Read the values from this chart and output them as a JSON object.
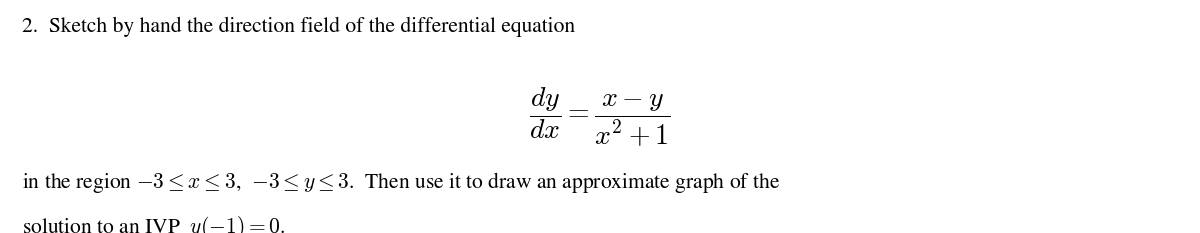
{
  "line1": "2.  Sketch by hand the direction field of the differential equation",
  "line3": "in the region $-3 \\leq x \\leq 3$,  $-3 \\leq y \\leq 3$.  Then use it to draw an approximate graph of the",
  "line4": "solution to an IVP  $y(-1) = 0$.",
  "equation": "$\\dfrac{dy}{dx} = \\dfrac{x - y}{x^2 + 1}$",
  "bg_color": "#ffffff",
  "text_color": "#000000",
  "fontsize_body": 15.5,
  "fontsize_eq": 20,
  "fig_width": 12.0,
  "fig_height": 2.33,
  "dpi": 100
}
